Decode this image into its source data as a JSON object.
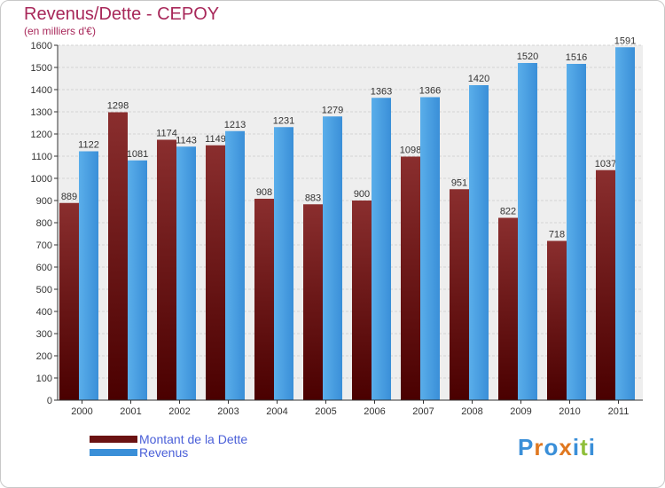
{
  "chart_data": {
    "type": "bar",
    "title": "Revenus/Dette - CEPOY",
    "subtitle": "(en milliers d'€)",
    "categories": [
      "2000",
      "2001",
      "2002",
      "2003",
      "2004",
      "2005",
      "2006",
      "2007",
      "2008",
      "2009",
      "2010",
      "2011"
    ],
    "series": [
      {
        "name": "Montant de la Dette",
        "color": "#6b1212",
        "values": [
          889,
          1298,
          1174,
          1149,
          908,
          883,
          900,
          1098,
          951,
          822,
          718,
          1037
        ]
      },
      {
        "name": "Revenus",
        "color": "#3a8fd8",
        "values": [
          1122,
          1081,
          1143,
          1213,
          1231,
          1279,
          1363,
          1366,
          1420,
          1520,
          1516,
          1591
        ]
      }
    ],
    "ylim": [
      0,
      1600
    ],
    "yticks": [
      0,
      100,
      200,
      300,
      400,
      500,
      600,
      700,
      800,
      900,
      1000,
      1100,
      1200,
      1300,
      1400,
      1500,
      1600
    ],
    "grid": true,
    "legend_position": "bottom-left"
  },
  "logo": {
    "letters": [
      {
        "ch": "P",
        "color": "#3a8fd8"
      },
      {
        "ch": "r",
        "color": "#e07820"
      },
      {
        "ch": "o",
        "color": "#3a8fd8"
      },
      {
        "ch": "x",
        "color": "#e07820"
      },
      {
        "ch": "i",
        "color": "#3a8fd8"
      },
      {
        "ch": "t",
        "color": "#8fbf3a"
      },
      {
        "ch": "i",
        "color": "#3a8fd8"
      }
    ]
  }
}
